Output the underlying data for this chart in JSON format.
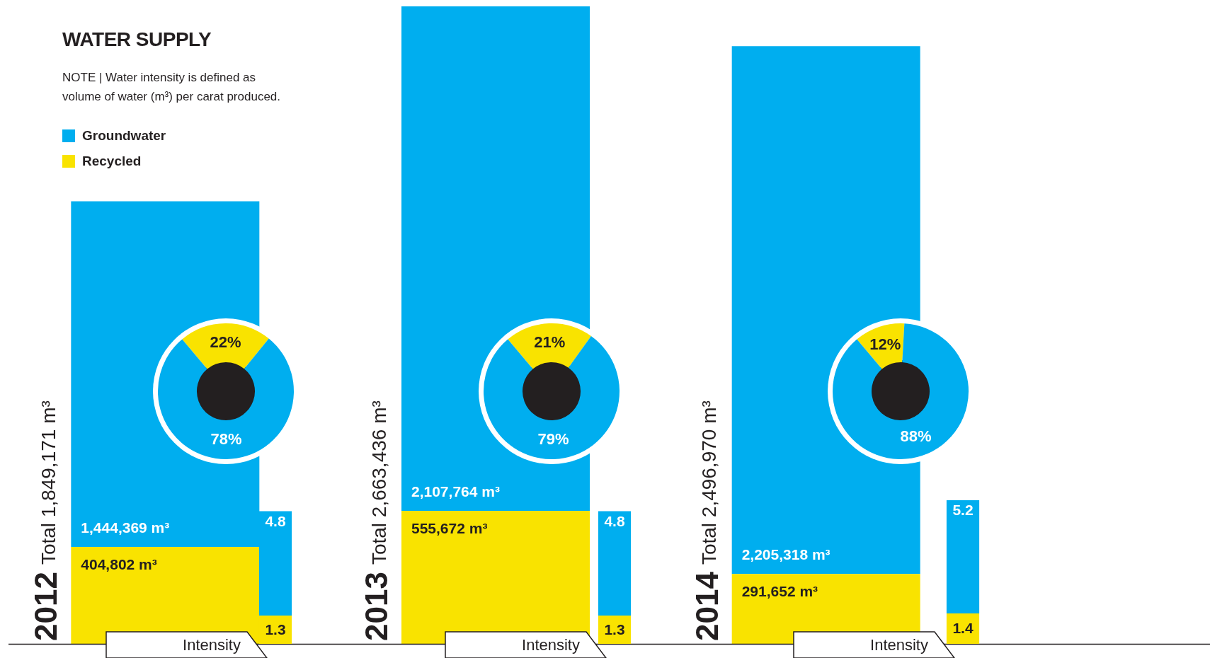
{
  "chart_data": [
    {
      "type": "bar",
      "title": "WATER SUPPLY",
      "subtitle": "NOTE | Water intensity is defined as volume of water (m³) per carat produced.",
      "categories": [
        "2012",
        "2013",
        "2014"
      ],
      "stacked": true,
      "legend": "top left",
      "series": [
        {
          "name": "Recycled",
          "color": "#f9e300",
          "values": [
            404802,
            555672,
            291652
          ],
          "value_labels": [
            "404,802 m³",
            "555,672 m³",
            "291,652 m³"
          ]
        },
        {
          "name": "Groundwater",
          "color": "#00aeef",
          "values": [
            1444369,
            2107764,
            2205318
          ],
          "value_labels": [
            "1,444,369 m³",
            "2,107,764 m³",
            "2,205,318 m³"
          ]
        }
      ],
      "totals": [
        "Total 1,849,171 m³",
        "Total 2,663,436 m³",
        "Total 2,496,970 m³"
      ]
    },
    {
      "type": "donut",
      "categories": [
        null,
        null
      ],
      "values": [
        22,
        78
      ],
      "colors": [
        "#f9e300",
        "#00aeef"
      ],
      "value_labels": [
        "22%",
        "78%"
      ]
    },
    {
      "type": "bar",
      "stacked": true,
      "categories": [
        null
      ],
      "xlabel": "Intensity",
      "series": [
        {
          "color": "#f9e300",
          "values": [
            1.3
          ]
        },
        {
          "color": "#00aeef",
          "values": [
            4.8
          ]
        }
      ],
      "data_labels": true
    },
    {
      "type": "donut",
      "categories": [
        null,
        null
      ],
      "values": [
        21,
        79
      ],
      "colors": [
        "#f9e300",
        "#00aeef"
      ],
      "value_labels": [
        "21%",
        "79%"
      ]
    },
    {
      "type": "bar",
      "stacked": true,
      "categories": [
        null
      ],
      "xlabel": "Intensity",
      "series": [
        {
          "color": "#f9e300",
          "values": [
            1.3
          ]
        },
        {
          "color": "#00aeef",
          "values": [
            4.8
          ]
        }
      ],
      "data_labels": true
    },
    {
      "type": "donut",
      "categories": [
        null,
        null
      ],
      "values": [
        12,
        88
      ],
      "colors": [
        "#f9e300",
        "#00aeef"
      ],
      "value_labels": [
        "12%",
        "88%"
      ]
    },
    {
      "type": "bar",
      "stacked": true,
      "categories": [
        null
      ],
      "xlabel": "Intensity",
      "series": [
        {
          "color": "#f9e300",
          "values": [
            1.4
          ]
        },
        {
          "color": "#00aeef",
          "values": [
            5.2
          ]
        }
      ],
      "data_labels": true
    }
  ]
}
